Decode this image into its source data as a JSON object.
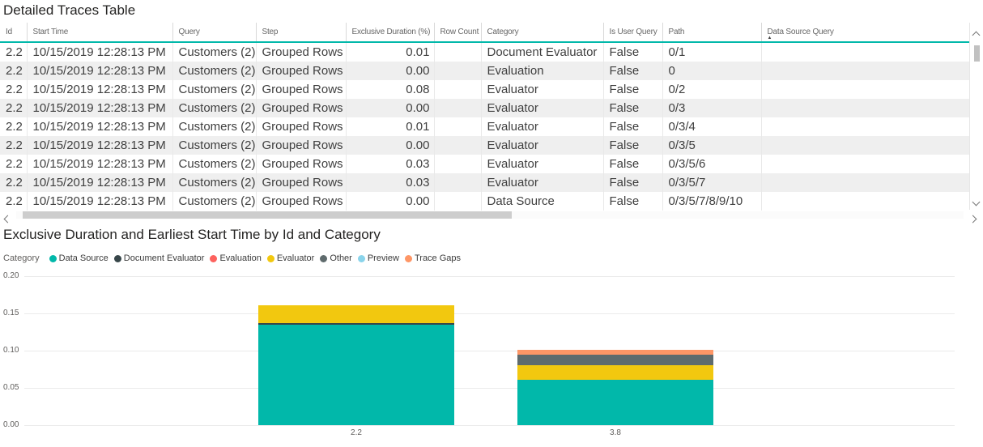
{
  "table": {
    "title": "Detailed Traces Table",
    "columns": [
      {
        "label": "Id",
        "align": "right"
      },
      {
        "label": "Start Time",
        "align": "left"
      },
      {
        "label": "Query",
        "align": "left"
      },
      {
        "label": "Step",
        "align": "left"
      },
      {
        "label": "Exclusive Duration (%)",
        "align": "right"
      },
      {
        "label": "Row Count",
        "align": "right"
      },
      {
        "label": "Category",
        "align": "left"
      },
      {
        "label": "Is User Query",
        "align": "left"
      },
      {
        "label": "Path",
        "align": "left"
      },
      {
        "label": "Data Source Query",
        "align": "left",
        "sorted": "asc"
      }
    ],
    "rows": [
      [
        "2.2",
        "10/15/2019 12:28:13 PM",
        "Customers (2)",
        "Grouped Rows",
        "0.01",
        "",
        "Document Evaluator",
        "False",
        "0/1",
        ""
      ],
      [
        "2.2",
        "10/15/2019 12:28:13 PM",
        "Customers (2)",
        "Grouped Rows",
        "0.00",
        "",
        "Evaluation",
        "False",
        "0",
        ""
      ],
      [
        "2.2",
        "10/15/2019 12:28:13 PM",
        "Customers (2)",
        "Grouped Rows",
        "0.08",
        "",
        "Evaluator",
        "False",
        "0/2",
        ""
      ],
      [
        "2.2",
        "10/15/2019 12:28:13 PM",
        "Customers (2)",
        "Grouped Rows",
        "0.00",
        "",
        "Evaluator",
        "False",
        "0/3",
        ""
      ],
      [
        "2.2",
        "10/15/2019 12:28:13 PM",
        "Customers (2)",
        "Grouped Rows",
        "0.01",
        "",
        "Evaluator",
        "False",
        "0/3/4",
        ""
      ],
      [
        "2.2",
        "10/15/2019 12:28:13 PM",
        "Customers (2)",
        "Grouped Rows",
        "0.00",
        "",
        "Evaluator",
        "False",
        "0/3/5",
        ""
      ],
      [
        "2.2",
        "10/15/2019 12:28:13 PM",
        "Customers (2)",
        "Grouped Rows",
        "0.03",
        "",
        "Evaluator",
        "False",
        "0/3/5/6",
        ""
      ],
      [
        "2.2",
        "10/15/2019 12:28:13 PM",
        "Customers (2)",
        "Grouped Rows",
        "0.03",
        "",
        "Evaluator",
        "False",
        "0/3/5/7",
        ""
      ],
      [
        "2.2",
        "10/15/2019 12:28:13 PM",
        "Customers (2)",
        "Grouped Rows",
        "0.00",
        "",
        "Data Source",
        "False",
        "0/3/5/7/8/9/10",
        ""
      ]
    ]
  },
  "chart_data": {
    "type": "bar",
    "stacked": true,
    "title": "Exclusive Duration and Earliest Start Time by Id and Category",
    "legend_title": "Category",
    "legend_position": "top-left",
    "grid": true,
    "categories": [
      "2.2",
      "3.8"
    ],
    "series": [
      {
        "name": "Data Source",
        "color": "#01B8AA",
        "values": [
          0.135,
          0.061
        ]
      },
      {
        "name": "Document Evaluator",
        "color": "#374649",
        "values": [
          0.002,
          0
        ]
      },
      {
        "name": "Evaluation",
        "color": "#FD625E",
        "values": [
          0,
          0
        ]
      },
      {
        "name": "Evaluator",
        "color": "#F2C80F",
        "values": [
          0.024,
          0.019
        ]
      },
      {
        "name": "Other",
        "color": "#5F6B6D",
        "values": [
          0,
          0.015
        ]
      },
      {
        "name": "Preview",
        "color": "#8AD4EB",
        "values": [
          0,
          0
        ]
      },
      {
        "name": "Trace Gaps",
        "color": "#FE9666",
        "values": [
          0,
          0.006
        ]
      }
    ],
    "xlabel": "",
    "ylabel": "",
    "ylim": [
      0,
      0.2
    ],
    "yticks": [
      "0.00",
      "0.05",
      "0.10",
      "0.15",
      "0.20"
    ]
  },
  "icons": {
    "sort": "sort-ascending-arrow-icon",
    "scroll_up": "chevron-up-icon",
    "scroll_down": "chevron-down-icon",
    "scroll_left": "chevron-left-icon",
    "scroll_right": "chevron-right-icon"
  },
  "colors": {
    "accent_header_underline": "#01B8AA",
    "alt_row": "#EFEFEF",
    "grid_line": "#EBEBEB",
    "scrollbar_thumb": "#C8C8C8",
    "axis_text": "#605E5C"
  }
}
